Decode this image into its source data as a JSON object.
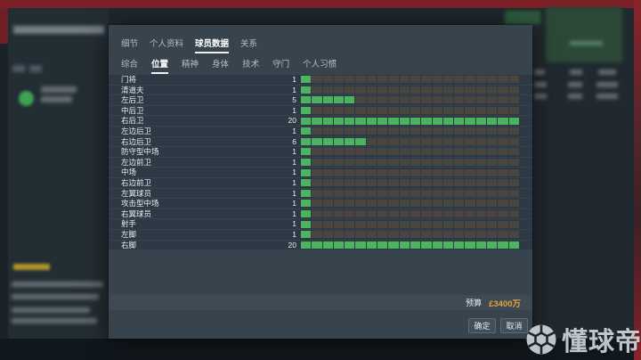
{
  "dialog": {
    "main_tabs": [
      {
        "name": "tab-details",
        "label": "细节",
        "active": false
      },
      {
        "name": "tab-profile",
        "label": "个人资料",
        "active": false
      },
      {
        "name": "tab-player-data",
        "label": "球员数据",
        "active": true
      },
      {
        "name": "tab-relations",
        "label": "关系",
        "active": false
      }
    ],
    "sub_tabs": [
      {
        "name": "subtab-overall",
        "label": "综合",
        "active": false
      },
      {
        "name": "subtab-position",
        "label": "位置",
        "active": true
      },
      {
        "name": "subtab-mental",
        "label": "精神",
        "active": false
      },
      {
        "name": "subtab-physical",
        "label": "身体",
        "active": false
      },
      {
        "name": "subtab-technical",
        "label": "技术",
        "active": false
      },
      {
        "name": "subtab-goalkeeping",
        "label": "守门",
        "active": false
      },
      {
        "name": "subtab-habits",
        "label": "个人习惯",
        "active": false
      }
    ],
    "bar_max": 20,
    "positions": [
      {
        "label": "门将",
        "value": 1
      },
      {
        "label": "清道夫",
        "value": 1
      },
      {
        "label": "左后卫",
        "value": 5
      },
      {
        "label": "中后卫",
        "value": 1
      },
      {
        "label": "右后卫",
        "value": 20
      },
      {
        "label": "左边后卫",
        "value": 1
      },
      {
        "label": "右边后卫",
        "value": 6
      },
      {
        "label": "防守型中场",
        "value": 1
      },
      {
        "label": "左边前卫",
        "value": 1
      },
      {
        "label": "中场",
        "value": 1
      },
      {
        "label": "右边前卫",
        "value": 1
      },
      {
        "label": "左翼球员",
        "value": 1
      },
      {
        "label": "攻击型中场",
        "value": 1
      },
      {
        "label": "右翼球员",
        "value": 1
      },
      {
        "label": "射手",
        "value": 1
      },
      {
        "label": "左脚",
        "value": 1
      },
      {
        "label": "右脚",
        "value": 20
      }
    ],
    "budget_label": "预算",
    "budget_value": "£3400万",
    "ok_label": "确定",
    "cancel_label": "取消"
  },
  "watermark": {
    "brand_text": "懂球帝",
    "logo": "football-icon"
  },
  "chart_data": {
    "type": "bar",
    "orientation": "horizontal",
    "title": "位置",
    "categories": [
      "门将",
      "清道夫",
      "左后卫",
      "中后卫",
      "右后卫",
      "左边后卫",
      "右边后卫",
      "防守型中场",
      "左边前卫",
      "中场",
      "右边前卫",
      "左翼球员",
      "攻击型中场",
      "右翼球员",
      "射手",
      "左脚",
      "右脚"
    ],
    "values": [
      1,
      1,
      5,
      1,
      20,
      1,
      6,
      1,
      1,
      1,
      1,
      1,
      1,
      1,
      1,
      1,
      20
    ],
    "xlim": [
      0,
      20
    ],
    "legend": false
  },
  "colors": {
    "bar_filled": "#4cb35e",
    "bar_empty": "#494540",
    "budget_value": "#e8a23c",
    "dialog_bg": "#37444e",
    "row_bg": "#2d3944",
    "top_bar_red": "#7d2027",
    "active_tab_underline": "#eef2f5"
  }
}
